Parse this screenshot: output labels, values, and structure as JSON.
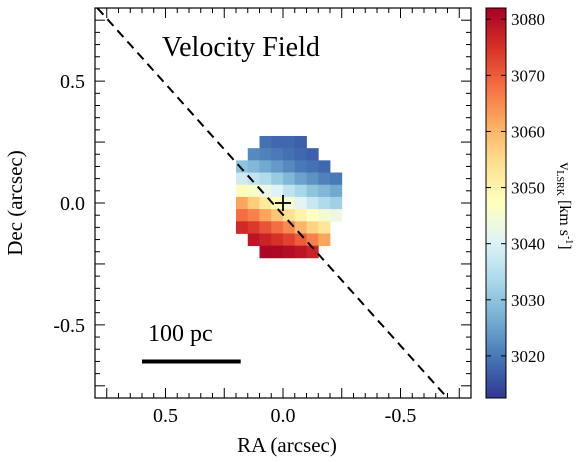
{
  "chart_data": {
    "type": "heatmap",
    "title": "Velocity Field",
    "xlabel": "RA (arcsec)",
    "ylabel": "Dec (arcsec)",
    "xlim": [
      0.8,
      -0.8
    ],
    "ylim": [
      -0.8,
      0.8
    ],
    "x_ticks": [
      0.5,
      0.0,
      -0.5
    ],
    "x_tick_labels": [
      "0.5",
      "0.0",
      "-0.5"
    ],
    "y_ticks": [
      0.5,
      0.0,
      -0.5
    ],
    "y_tick_labels": [
      "0.5",
      "0.0",
      "-0.5"
    ],
    "pixel_size_arcsec": 0.05,
    "grid_x0_arcsec": 0.2,
    "grid_y0_arcsec": 0.275,
    "pixels": [
      [
        null,
        null,
        3019,
        3018,
        3018,
        3017,
        null,
        null,
        null
      ],
      [
        null,
        3022,
        3021,
        3020,
        3019,
        3018,
        3017,
        null,
        null
      ],
      [
        3030,
        3028,
        3026,
        3024,
        3022,
        3020,
        3019,
        3018,
        null
      ],
      [
        3038,
        3036,
        3034,
        3031,
        3028,
        3025,
        3023,
        3021,
        3020
      ],
      [
        3048,
        3046,
        3043,
        3040,
        3036,
        3033,
        3030,
        3028,
        3026
      ],
      [
        3062,
        3057,
        3052,
        3048,
        3045,
        3041,
        3037,
        3034,
        3032
      ],
      [
        3068,
        3066,
        3062,
        3058,
        3054,
        3050,
        3047,
        3045,
        3043
      ],
      [
        3076,
        3074,
        3071,
        3068,
        3065,
        3060,
        3056,
        3053,
        null
      ],
      [
        null,
        3079,
        3077,
        3075,
        3073,
        3070,
        3066,
        3062,
        null
      ],
      [
        null,
        null,
        3081,
        3081,
        3080,
        3079,
        3077,
        null,
        null
      ]
    ],
    "major_axis_line": {
      "from": [
        0.79,
        0.8
      ],
      "to": [
        -0.7,
        -0.8
      ],
      "style": "dashed"
    },
    "center_marker": {
      "x": 0.0,
      "y": 0.0,
      "symbol": "plus"
    },
    "scale_bar": {
      "label": "100 pc",
      "x_from": 0.6,
      "x_to": 0.18,
      "y": -0.65
    },
    "colorbar": {
      "label_main": "v",
      "label_sub": "LSRK",
      "label_unit": "[km s",
      "label_exp": "-1",
      "label_close": "]",
      "min": 3012.5,
      "max": 3082,
      "ticks": [
        3080,
        3070,
        3060,
        3050,
        3040,
        3030,
        3020
      ],
      "tick_labels": [
        "3080",
        "3070",
        "3060",
        "3050",
        "3040",
        "3030",
        "3020"
      ],
      "colormap": "RdYlBu_r",
      "colormap_stops": [
        "#313695",
        "#4575b4",
        "#74add1",
        "#abd9e9",
        "#e0f3f8",
        "#ffffbf",
        "#fee090",
        "#fdae61",
        "#f46d43",
        "#d73027",
        "#a50026"
      ]
    }
  }
}
